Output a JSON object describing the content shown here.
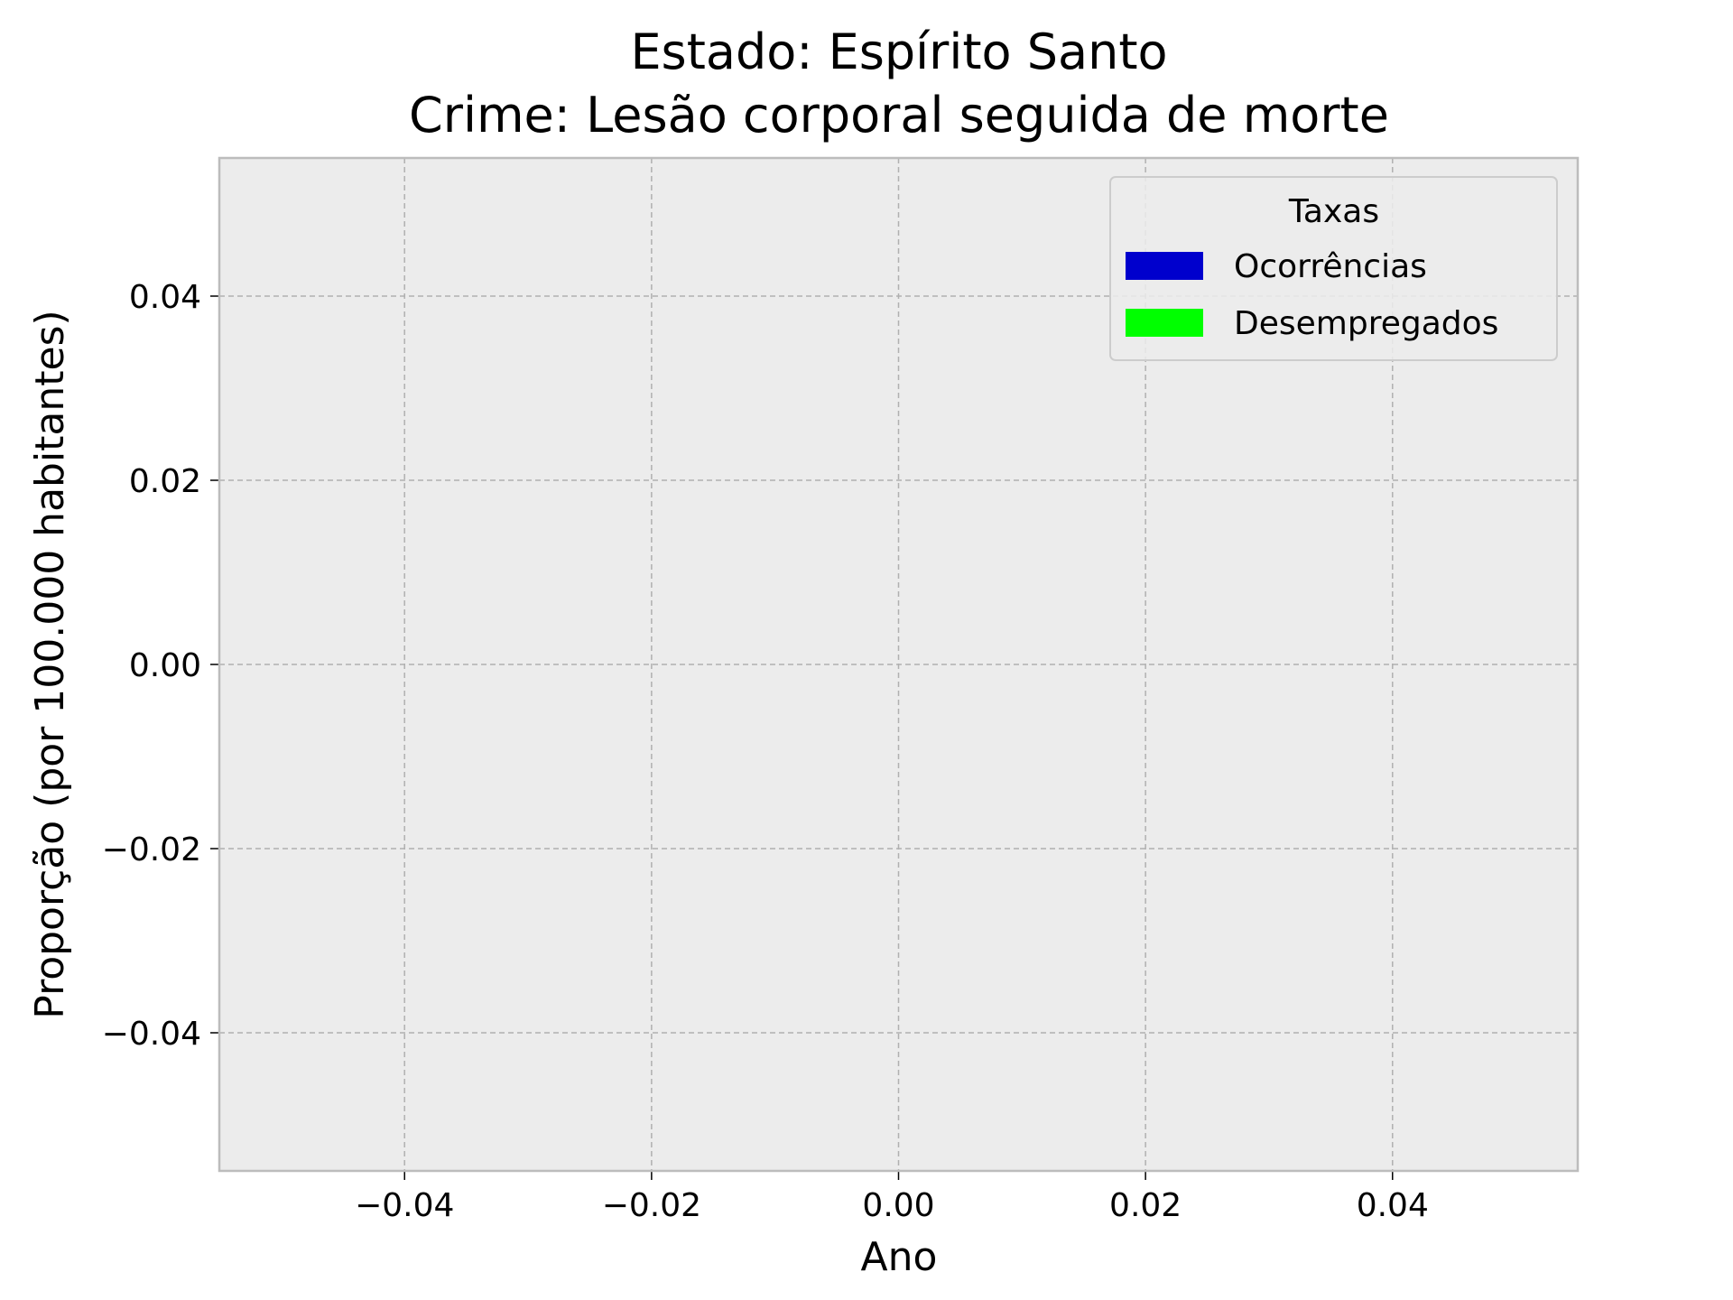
{
  "chart_data": {
    "type": "bar",
    "title": "Estado: Espírito Santo",
    "subtitle": "Crime: Lesão corporal seguida de morte",
    "xlabel": "Ano",
    "ylabel": "Proporção (por 100.000 habitantes)",
    "xlim": [
      -0.055,
      0.055
    ],
    "ylim": [
      -0.055,
      0.055
    ],
    "xticks": [
      -0.04,
      -0.02,
      0.0,
      0.02,
      0.04
    ],
    "yticks": [
      -0.04,
      -0.02,
      0.0,
      0.02,
      0.04
    ],
    "xtick_labels": [
      "−0.04",
      "−0.02",
      "0.00",
      "0.02",
      "0.04"
    ],
    "ytick_labels": [
      "−0.04",
      "−0.02",
      "0.00",
      "0.02",
      "0.04"
    ],
    "grid": true,
    "grid_style": "dashed",
    "background_color": "#ececec",
    "legend": {
      "title": "Taxas",
      "placement": "upper right",
      "entries": [
        {
          "label": "Ocorrências",
          "color": "#0000cd"
        },
        {
          "label": "Desempregados",
          "color": "#00ff00"
        }
      ]
    },
    "categories": [],
    "series": [
      {
        "name": "Ocorrências",
        "color": "#0000cd",
        "values": []
      },
      {
        "name": "Desempregados",
        "color": "#00ff00",
        "values": []
      }
    ]
  }
}
